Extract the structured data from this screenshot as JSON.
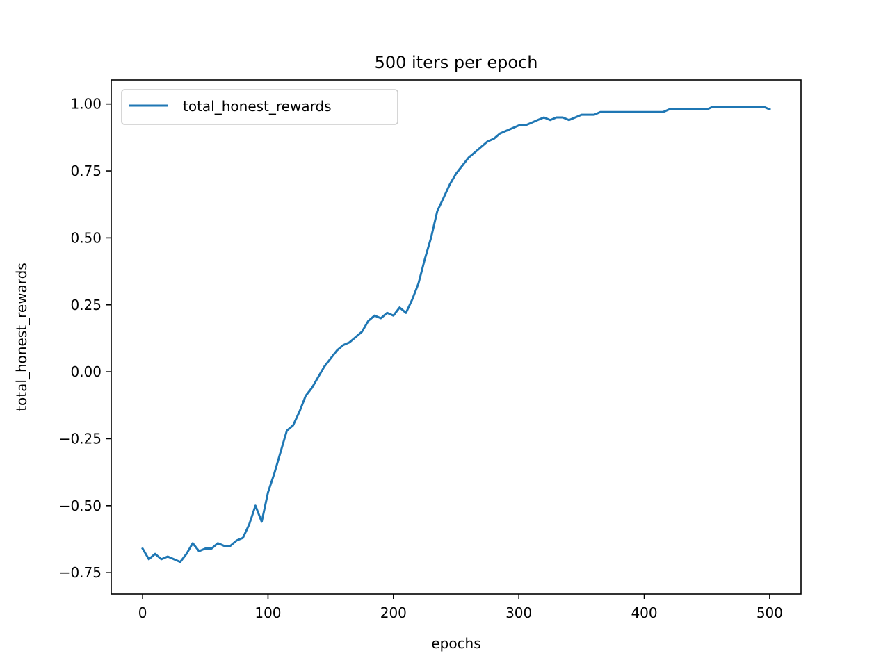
{
  "chart_data": {
    "type": "line",
    "title": "500 iters per epoch",
    "xlabel": "epochs",
    "ylabel": "total_honest_rewards",
    "xlim": [
      -25,
      525
    ],
    "ylim": [
      -0.83,
      1.09
    ],
    "xticks": [
      0,
      100,
      200,
      300,
      400,
      500
    ],
    "xtick_labels": [
      "0",
      "100",
      "200",
      "300",
      "400",
      "500"
    ],
    "yticks": [
      -0.75,
      -0.5,
      -0.25,
      0.0,
      0.25,
      0.5,
      0.75,
      1.0
    ],
    "ytick_labels": [
      "−0.75",
      "−0.50",
      "−0.25",
      "0.00",
      "0.25",
      "0.50",
      "0.75",
      "1.00"
    ],
    "grid": false,
    "legend_position": "upper-left",
    "series": [
      {
        "name": "total_honest_rewards",
        "color": "#1f77b4",
        "x": [
          0,
          5,
          10,
          15,
          20,
          25,
          30,
          35,
          40,
          45,
          50,
          55,
          60,
          65,
          70,
          75,
          80,
          85,
          90,
          95,
          100,
          105,
          110,
          115,
          120,
          125,
          130,
          135,
          140,
          145,
          150,
          155,
          160,
          165,
          170,
          175,
          180,
          185,
          190,
          195,
          200,
          205,
          210,
          215,
          220,
          225,
          230,
          235,
          240,
          245,
          250,
          255,
          260,
          265,
          270,
          275,
          280,
          285,
          290,
          295,
          300,
          305,
          310,
          315,
          320,
          325,
          330,
          335,
          340,
          345,
          350,
          355,
          360,
          365,
          370,
          375,
          380,
          385,
          390,
          395,
          400,
          405,
          410,
          415,
          420,
          425,
          430,
          435,
          440,
          445,
          450,
          455,
          460,
          465,
          470,
          475,
          480,
          485,
          490,
          495,
          500
        ],
        "y": [
          -0.66,
          -0.7,
          -0.68,
          -0.7,
          -0.69,
          -0.7,
          -0.71,
          -0.68,
          -0.64,
          -0.67,
          -0.66,
          -0.66,
          -0.64,
          -0.65,
          -0.65,
          -0.63,
          -0.62,
          -0.57,
          -0.5,
          -0.56,
          -0.45,
          -0.38,
          -0.3,
          -0.22,
          -0.2,
          -0.15,
          -0.09,
          -0.06,
          -0.02,
          0.02,
          0.05,
          0.08,
          0.1,
          0.11,
          0.13,
          0.15,
          0.19,
          0.21,
          0.2,
          0.22,
          0.21,
          0.24,
          0.22,
          0.27,
          0.33,
          0.42,
          0.5,
          0.6,
          0.65,
          0.7,
          0.74,
          0.77,
          0.8,
          0.82,
          0.84,
          0.86,
          0.87,
          0.89,
          0.9,
          0.91,
          0.92,
          0.92,
          0.93,
          0.94,
          0.95,
          0.94,
          0.95,
          0.95,
          0.94,
          0.95,
          0.96,
          0.96,
          0.96,
          0.97,
          0.97,
          0.97,
          0.97,
          0.97,
          0.97,
          0.97,
          0.97,
          0.97,
          0.97,
          0.97,
          0.98,
          0.98,
          0.98,
          0.98,
          0.98,
          0.98,
          0.98,
          0.99,
          0.99,
          0.99,
          0.99,
          0.99,
          0.99,
          0.99,
          0.99,
          0.99,
          0.98
        ]
      }
    ]
  }
}
